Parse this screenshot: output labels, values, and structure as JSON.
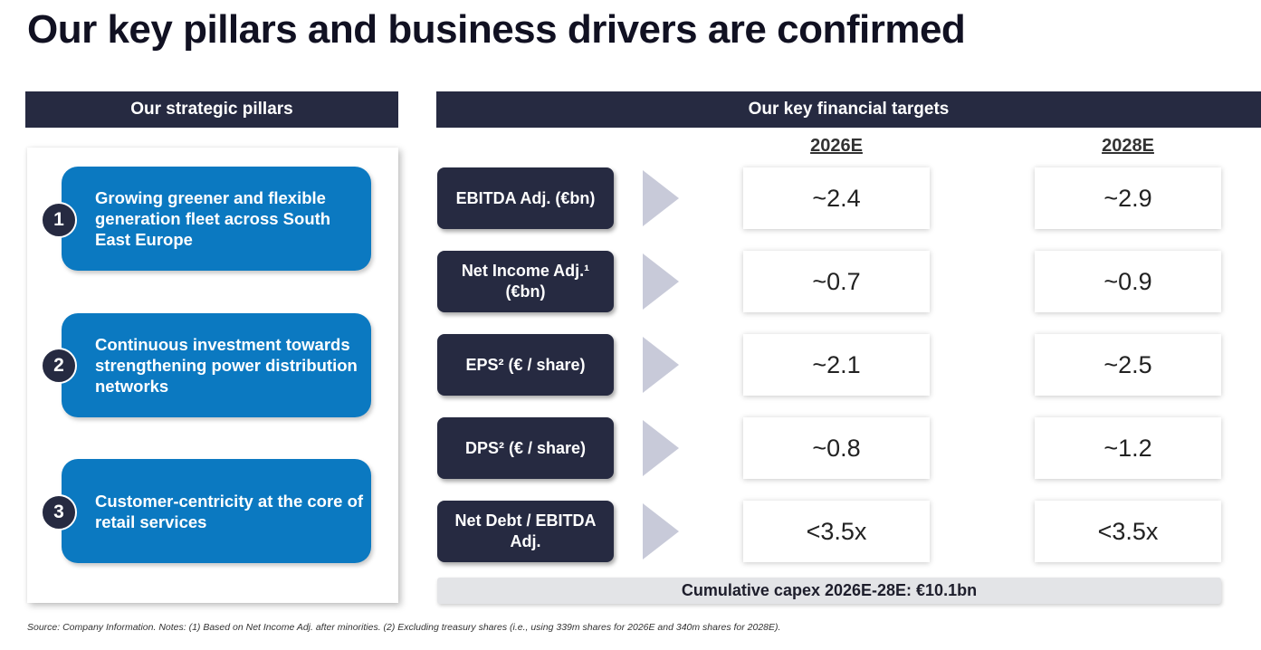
{
  "title": "Our key pillars and business drivers are confirmed",
  "left_header": "Our strategic pillars",
  "right_header": "Our key financial targets",
  "pillars": [
    {
      "number": "1",
      "text": "Growing greener and flexible generation fleet across South East Europe"
    },
    {
      "number": "2",
      "text": "Continuous investment towards strengthening power distribution networks"
    },
    {
      "number": "3",
      "text": "Customer-centricity at the core of retail services"
    }
  ],
  "years": [
    "2026E",
    "2028E"
  ],
  "metrics": [
    {
      "label": "EBITDA Adj. (€bn)",
      "v2026": "~2.4",
      "v2028": "~2.9"
    },
    {
      "label": "Net Income Adj.¹ (€bn)",
      "v2026": "~0.7",
      "v2028": "~0.9"
    },
    {
      "label": "EPS² (€ / share)",
      "v2026": "~2.1",
      "v2028": "~2.5"
    },
    {
      "label": "DPS² (€ / share)",
      "v2026": "~0.8",
      "v2028": "~1.2"
    },
    {
      "label": "Net Debt / EBITDA Adj.",
      "v2026": "<3.5x",
      "v2028": "<3.5x"
    }
  ],
  "capex": "Cumulative capex 2026E-28E: €10.1bn",
  "source": "Source: Company Information. Notes: (1) Based on Net Income Adj. after minorities. (2) Excluding treasury shares (i.e., using 339m shares for 2026E and 340m shares for 2028E).",
  "colors": {
    "navy": "#262a41",
    "blue": "#0b79c1",
    "arrow": "#c8cad9"
  }
}
